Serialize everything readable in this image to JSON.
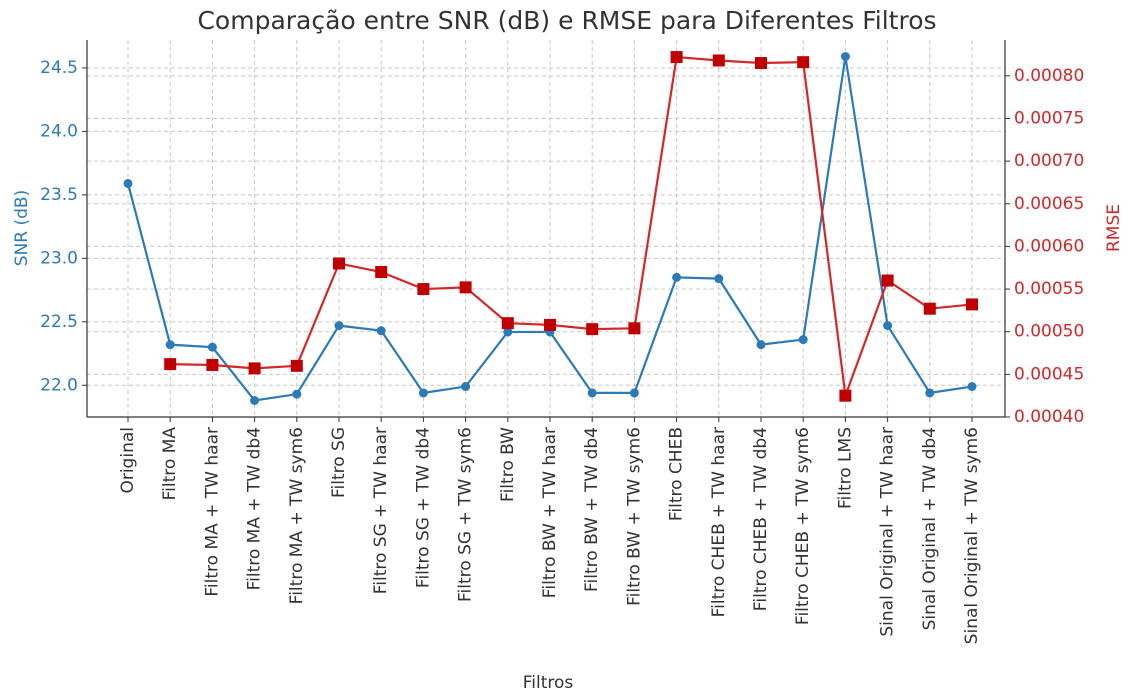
{
  "chart_data": {
    "type": "line",
    "title": "Comparação entre SNR (dB) e RMSE para Diferentes Filtros",
    "xlabel": "Filtros",
    "ylabel": "SNR (dB)",
    "y2label": "RMSE",
    "categories": [
      "Original",
      "Filtro MA",
      "Filtro MA + TW haar",
      "Filtro MA + TW db4",
      "Filtro MA + TW sym6",
      "Filtro SG",
      "Filtro SG + TW haar",
      "Filtro SG + TW db4",
      "Filtro SG + TW sym6",
      "Filtro BW",
      "Filtro BW + TW haar",
      "Filtro BW + TW db4",
      "Filtro BW + TW sym6",
      "Filtro CHEB",
      "Filtro CHEB + TW haar",
      "Filtro CHEB + TW db4",
      "Filtro CHEB + TW sym6",
      "Filtro LMS",
      "Sinal Original + TW haar",
      "Sinal Original + TW db4",
      "Sinal Original + TW sym6"
    ],
    "series": [
      {
        "name": "SNR (dB)",
        "color": "#2c7bb6",
        "marker": "circle",
        "values": [
          23.59,
          22.32,
          22.3,
          21.88,
          21.93,
          22.47,
          22.43,
          21.94,
          21.99,
          22.42,
          22.42,
          21.94,
          21.94,
          22.85,
          22.84,
          22.32,
          22.36,
          24.59,
          22.47,
          21.94,
          21.99
        ]
      },
      {
        "name": "RMSE",
        "color": "#d62728",
        "marker": "square",
        "axis": "y2",
        "values": [
          null,
          0.000462,
          0.000461,
          0.000457,
          0.00046,
          0.00058,
          0.00057,
          0.00055,
          0.000552,
          0.00051,
          0.000508,
          0.000503,
          0.000504,
          0.000822,
          0.000818,
          0.000815,
          0.000816,
          0.000425,
          0.00056,
          0.000527,
          0.000532
        ]
      }
    ],
    "ylim": [
      21.75,
      24.72
    ],
    "yticks": [
      {
        "value": 22,
        "label": "22.0"
      },
      22.5,
      {
        "value": 23,
        "label": "23.0"
      },
      23.5,
      {
        "value": 24,
        "label": "24.0"
      },
      24.5
    ],
    "y2lim": [
      0.0004,
      0.000842
    ],
    "y2ticks": [
      {
        "value": 0.0004,
        "label": "0.00040"
      },
      0.00045,
      {
        "value": 0.0005,
        "label": "0.00050"
      },
      0.00055,
      {
        "value": 0.0006,
        "label": "0.00060"
      },
      0.00065,
      {
        "value": 0.0007,
        "label": "0.00070"
      },
      0.00075,
      {
        "value": 0.0008,
        "label": "0.00080"
      }
    ],
    "grid": true
  }
}
